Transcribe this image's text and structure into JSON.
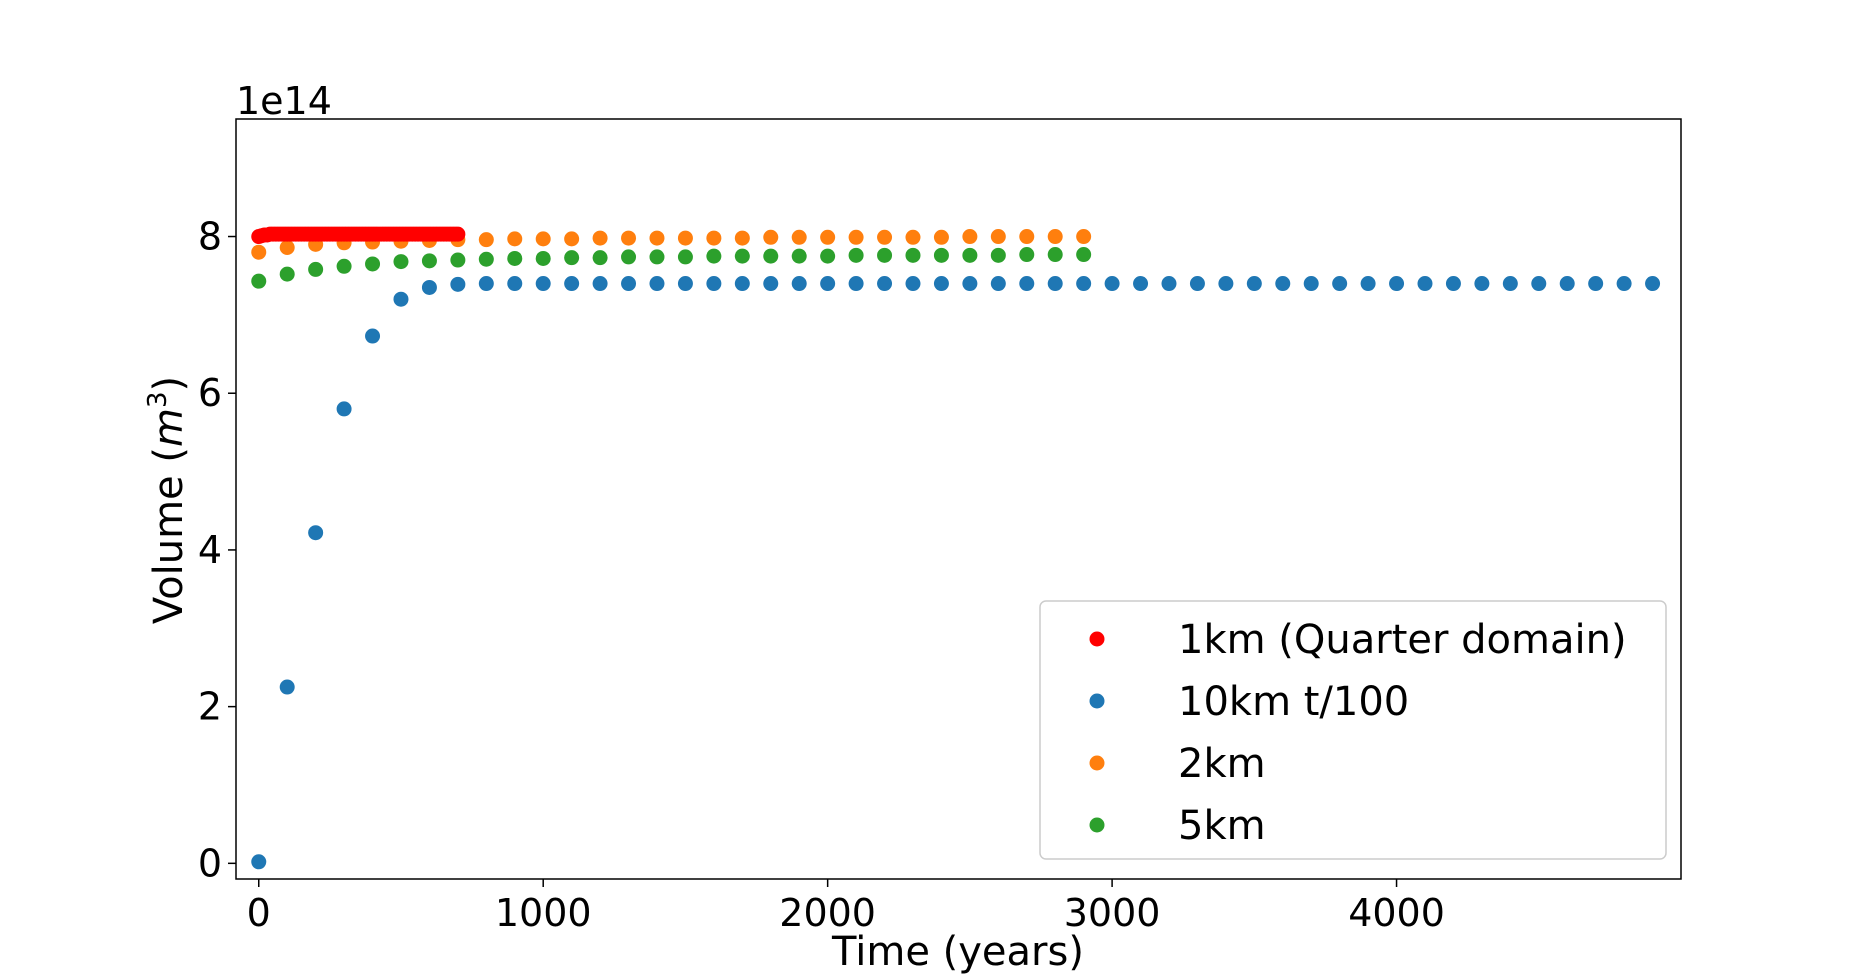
{
  "chart_data": {
    "type": "scatter",
    "xlabel": "Time (years)",
    "ylabel_main": "Volume (",
    "ylabel_var": "m",
    "ylabel_exp": "3",
    "ylabel_close": ")",
    "offset_text": "1e14",
    "xlim": [
      -80,
      5000
    ],
    "ylim": [
      -0.2,
      9.5
    ],
    "xticks": [
      0,
      1000,
      2000,
      3000,
      4000
    ],
    "xtick_labels": [
      "0",
      "1000",
      "2000",
      "3000",
      "4000"
    ],
    "yticks": [
      0,
      2,
      4,
      6,
      8
    ],
    "ytick_labels": [
      "0",
      "2",
      "4",
      "6",
      "8"
    ],
    "grid": false,
    "legend_position": "lower-right",
    "series": [
      {
        "name": "1km (Quarter domain)",
        "color": "#ff0000",
        "x": [
          0,
          10,
          20,
          30,
          40,
          50,
          60,
          70,
          80,
          90,
          100,
          110,
          120,
          130,
          140,
          150,
          160,
          170,
          180,
          190,
          200,
          210,
          220,
          230,
          240,
          250,
          260,
          270,
          280,
          290,
          300,
          310,
          320,
          330,
          340,
          350,
          360,
          370,
          380,
          390,
          400,
          410,
          420,
          430,
          440,
          450,
          460,
          470,
          480,
          490,
          500,
          510,
          520,
          530,
          540,
          550,
          560,
          570,
          580,
          590,
          600,
          610,
          620,
          630,
          640,
          650,
          660,
          670,
          680,
          690,
          700
        ],
        "y": [
          8.0,
          8.01,
          8.02,
          8.02,
          8.03,
          8.03,
          8.03,
          8.03,
          8.03,
          8.03,
          8.03,
          8.03,
          8.03,
          8.03,
          8.03,
          8.03,
          8.03,
          8.03,
          8.03,
          8.03,
          8.03,
          8.03,
          8.03,
          8.03,
          8.03,
          8.03,
          8.03,
          8.03,
          8.03,
          8.03,
          8.03,
          8.03,
          8.03,
          8.03,
          8.03,
          8.03,
          8.03,
          8.03,
          8.03,
          8.03,
          8.03,
          8.03,
          8.03,
          8.03,
          8.03,
          8.03,
          8.03,
          8.03,
          8.03,
          8.03,
          8.03,
          8.03,
          8.03,
          8.03,
          8.03,
          8.03,
          8.03,
          8.03,
          8.03,
          8.03,
          8.03,
          8.03,
          8.03,
          8.03,
          8.03,
          8.03,
          8.03,
          8.03,
          8.03,
          8.03,
          8.03
        ]
      },
      {
        "name": "10km t/100",
        "color": "#1f77b4",
        "x": [
          0,
          100,
          200,
          300,
          400,
          500,
          600,
          700,
          800,
          900,
          1000,
          1100,
          1200,
          1300,
          1400,
          1500,
          1600,
          1700,
          1800,
          1900,
          2000,
          2100,
          2200,
          2300,
          2400,
          2500,
          2600,
          2700,
          2800,
          2900,
          3000,
          3100,
          3200,
          3300,
          3400,
          3500,
          3600,
          3700,
          3800,
          3900,
          4000,
          4100,
          4200,
          4300,
          4400,
          4500,
          4600,
          4700,
          4800,
          4900
        ],
        "y": [
          0.02,
          2.25,
          4.22,
          5.8,
          6.73,
          7.2,
          7.35,
          7.39,
          7.4,
          7.4,
          7.4,
          7.4,
          7.4,
          7.4,
          7.4,
          7.4,
          7.4,
          7.4,
          7.4,
          7.4,
          7.4,
          7.4,
          7.4,
          7.4,
          7.4,
          7.4,
          7.4,
          7.4,
          7.4,
          7.4,
          7.4,
          7.4,
          7.4,
          7.4,
          7.4,
          7.4,
          7.4,
          7.4,
          7.4,
          7.4,
          7.4,
          7.4,
          7.4,
          7.4,
          7.4,
          7.4,
          7.4,
          7.4,
          7.4,
          7.4
        ]
      },
      {
        "name": "2km",
        "color": "#ff7f0e",
        "x": [
          0,
          100,
          200,
          300,
          400,
          500,
          600,
          700,
          800,
          900,
          1000,
          1100,
          1200,
          1300,
          1400,
          1500,
          1600,
          1700,
          1800,
          1900,
          2000,
          2100,
          2200,
          2300,
          2400,
          2500,
          2600,
          2700,
          2800,
          2900
        ],
        "y": [
          7.8,
          7.86,
          7.9,
          7.92,
          7.93,
          7.94,
          7.95,
          7.96,
          7.96,
          7.97,
          7.97,
          7.97,
          7.98,
          7.98,
          7.98,
          7.98,
          7.98,
          7.98,
          7.99,
          7.99,
          7.99,
          7.99,
          7.99,
          7.99,
          7.99,
          8.0,
          8.0,
          8.0,
          8.0,
          8.0
        ]
      },
      {
        "name": "5km",
        "color": "#2ca02c",
        "x": [
          0,
          100,
          200,
          300,
          400,
          500,
          600,
          700,
          800,
          900,
          1000,
          1100,
          1200,
          1300,
          1400,
          1500,
          1600,
          1700,
          1800,
          1900,
          2000,
          2100,
          2200,
          2300,
          2400,
          2500,
          2600,
          2700,
          2800,
          2900
        ],
        "y": [
          7.43,
          7.52,
          7.58,
          7.62,
          7.65,
          7.68,
          7.69,
          7.7,
          7.71,
          7.72,
          7.72,
          7.73,
          7.73,
          7.74,
          7.74,
          7.74,
          7.75,
          7.75,
          7.75,
          7.75,
          7.75,
          7.76,
          7.76,
          7.76,
          7.76,
          7.76,
          7.76,
          7.77,
          7.77,
          7.77
        ]
      }
    ]
  }
}
